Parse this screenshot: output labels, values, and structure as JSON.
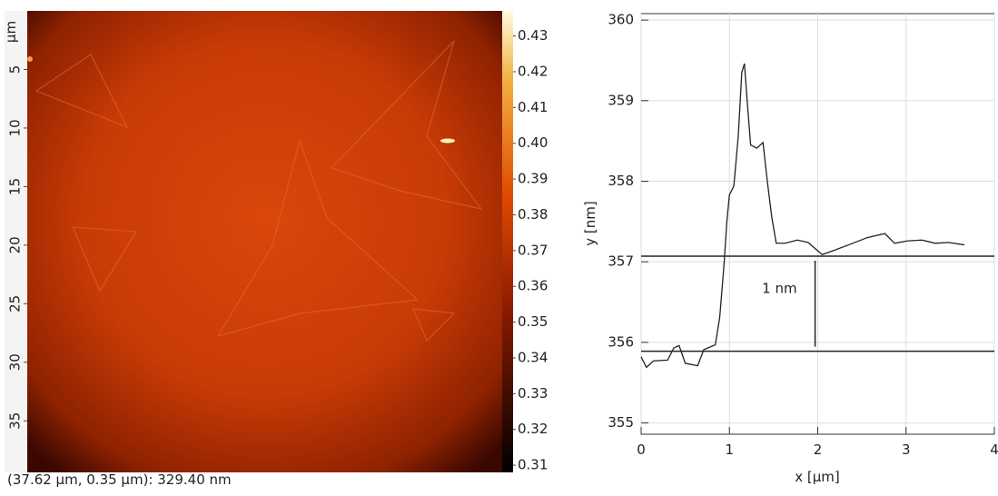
{
  "image": {
    "axis_label": "µm",
    "ylim": [
      0,
      39.4
    ],
    "yticks": [
      5,
      10,
      15,
      20,
      25,
      30,
      35
    ],
    "colorbar": {
      "clim": [
        0.308,
        0.437
      ],
      "ticks": [
        0.43,
        0.42,
        0.41,
        {
          "value": 0.4,
          "label": "0.40"
        },
        0.39,
        0.38,
        0.37,
        0.36,
        0.35,
        0.34,
        0.33,
        0.32,
        0.31
      ]
    },
    "status": "(37.62 µm, 0.35 µm): 329.40 nm"
  },
  "chart_data": {
    "type": "line",
    "xlabel": "x [µm]",
    "ylabel": "y [nm]",
    "xlim": [
      0,
      4
    ],
    "ylim": [
      354.86,
      360.08
    ],
    "xticks": [
      0,
      1,
      2,
      3,
      4
    ],
    "yticks": [
      355,
      356,
      357,
      358,
      359,
      360
    ],
    "grid": true,
    "series": [
      {
        "color": "#222222",
        "x": [
          0,
          0.06,
          0.14,
          0.3,
          0.37,
          0.43,
          0.5,
          0.64,
          0.71,
          0.84,
          0.89,
          0.94,
          0.97,
          1.0,
          1.05,
          1.1,
          1.14,
          1.17,
          1.2,
          1.24,
          1.31,
          1.38,
          1.43,
          1.48,
          1.53,
          1.63,
          1.77,
          1.89,
          2.05,
          2.18,
          2.35,
          2.56,
          2.76,
          2.87,
          3.02,
          3.18,
          3.33,
          3.48,
          3.66
        ],
        "values": [
          355.82,
          355.69,
          355.77,
          355.78,
          355.93,
          355.96,
          355.74,
          355.71,
          355.91,
          355.97,
          356.31,
          356.98,
          357.49,
          357.83,
          357.94,
          358.56,
          359.35,
          359.46,
          359.01,
          358.45,
          358.41,
          358.48,
          357.99,
          357.55,
          357.23,
          357.23,
          357.27,
          357.24,
          357.09,
          357.14,
          357.21,
          357.3,
          357.35,
          357.23,
          357.26,
          357.27,
          357.23,
          357.24,
          357.21
        ]
      }
    ],
    "hlines": [
      357.07,
      355.89
    ],
    "marker_x": 1.97,
    "annotation": "1 nm"
  }
}
